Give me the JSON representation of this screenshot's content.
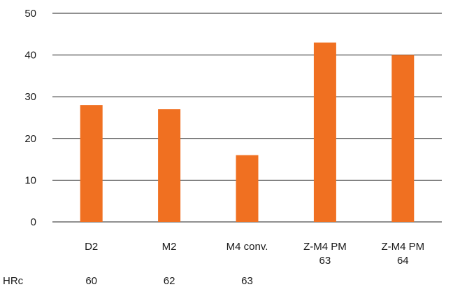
{
  "chart_data": {
    "type": "bar",
    "title": "",
    "xlabel": "",
    "ylabel": "",
    "ylim": [
      0,
      50
    ],
    "yticks": [
      "0",
      "10",
      "20",
      "30",
      "40",
      "50"
    ],
    "grid": true,
    "categories": [
      "D2",
      "M2",
      "M4 conv.",
      "Z-M4 PM 63",
      "Z-M4 PM 64"
    ],
    "category_lines": [
      [
        "D2"
      ],
      [
        "M2"
      ],
      [
        "M4 conv."
      ],
      [
        "Z-M4 PM",
        "63"
      ],
      [
        "Z-M4 PM",
        "64"
      ]
    ],
    "values": [
      28,
      27,
      16,
      43,
      40
    ],
    "bar_color": "#f07021",
    "hrc_row": {
      "label": "HRc",
      "values": [
        "60",
        "62",
        "63",
        "",
        ""
      ]
    }
  }
}
